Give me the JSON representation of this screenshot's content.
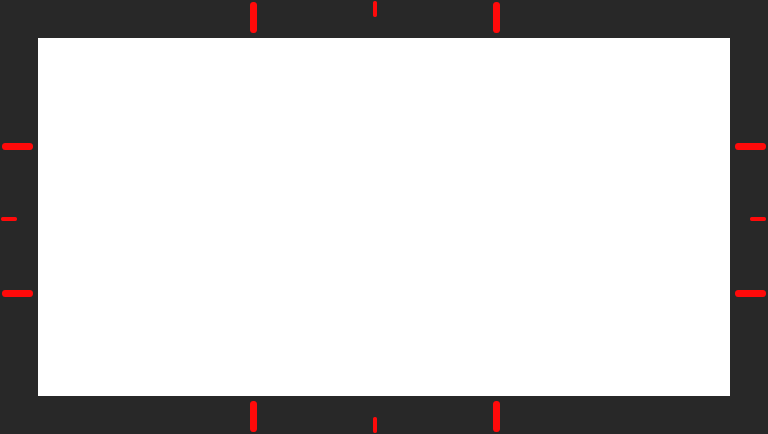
{
  "frame": {
    "background_color": "#282828",
    "canvas_color": "#ffffff",
    "marker_color": "#ff0a0a",
    "markers": {
      "top": [
        "long",
        "short",
        "long"
      ],
      "bottom": [
        "long",
        "short",
        "long"
      ],
      "left": [
        "long",
        "short",
        "long"
      ],
      "right": [
        "long",
        "short",
        "long"
      ]
    }
  }
}
